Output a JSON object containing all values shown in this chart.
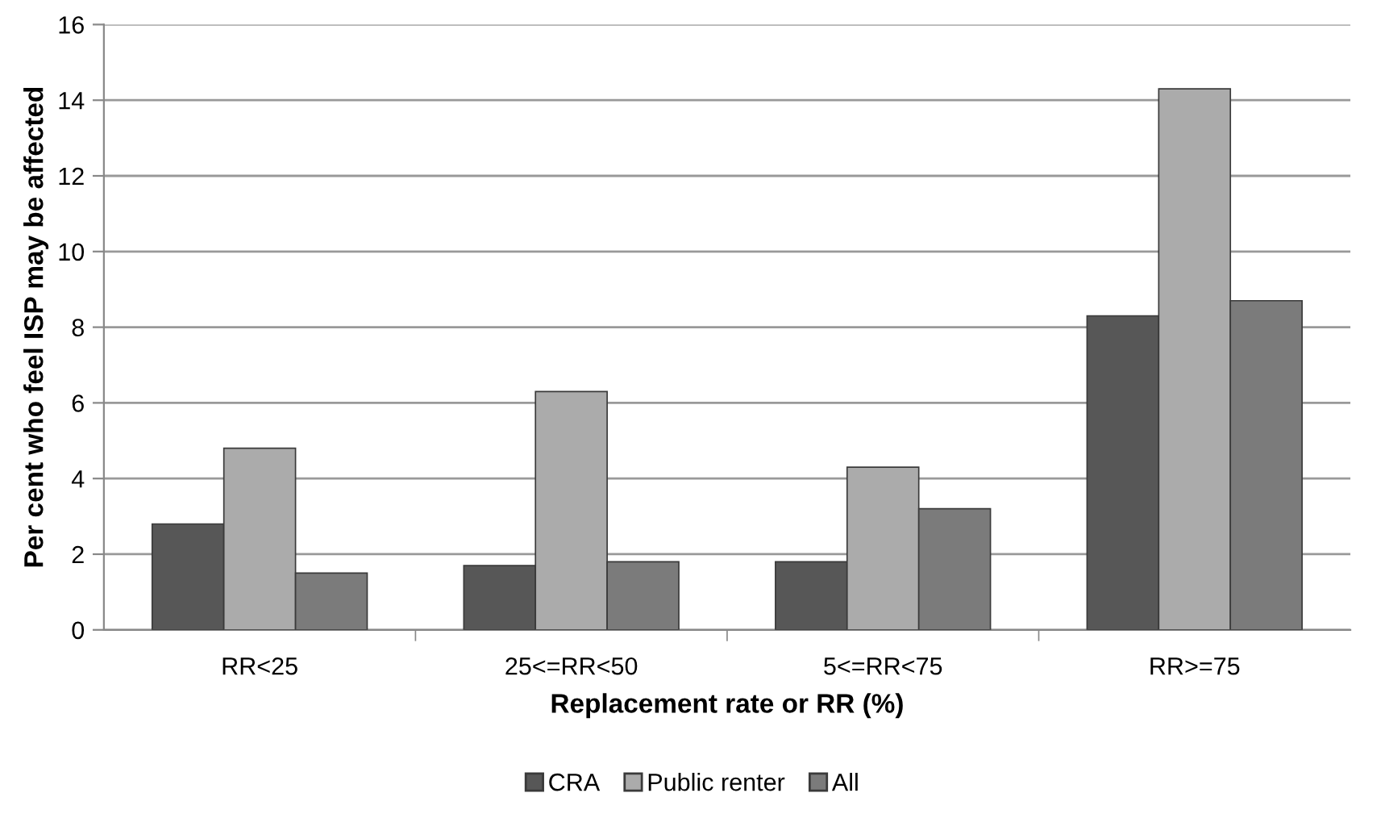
{
  "chart_data": {
    "type": "bar",
    "xlabel": "Replacement rate or RR (%)",
    "ylabel": "Per cent who feel ISP may be affected",
    "categories": [
      "RR<25",
      "25<=RR<50",
      "5<=RR<75",
      "RR>=75"
    ],
    "series": [
      {
        "name": "CRA",
        "color": "#575757",
        "values": [
          2.8,
          1.7,
          1.8,
          8.3
        ]
      },
      {
        "name": "Public renter",
        "color": "#ababab",
        "values": [
          4.8,
          6.3,
          4.3,
          14.3
        ]
      },
      {
        "name": "All",
        "color": "#7b7b7b",
        "values": [
          1.5,
          1.8,
          3.2,
          8.7
        ]
      }
    ],
    "ylim": [
      0,
      16
    ],
    "yticks": [
      0,
      2,
      4,
      6,
      8,
      10,
      12,
      14,
      16
    ],
    "grid": "y",
    "legend": "bottom"
  }
}
